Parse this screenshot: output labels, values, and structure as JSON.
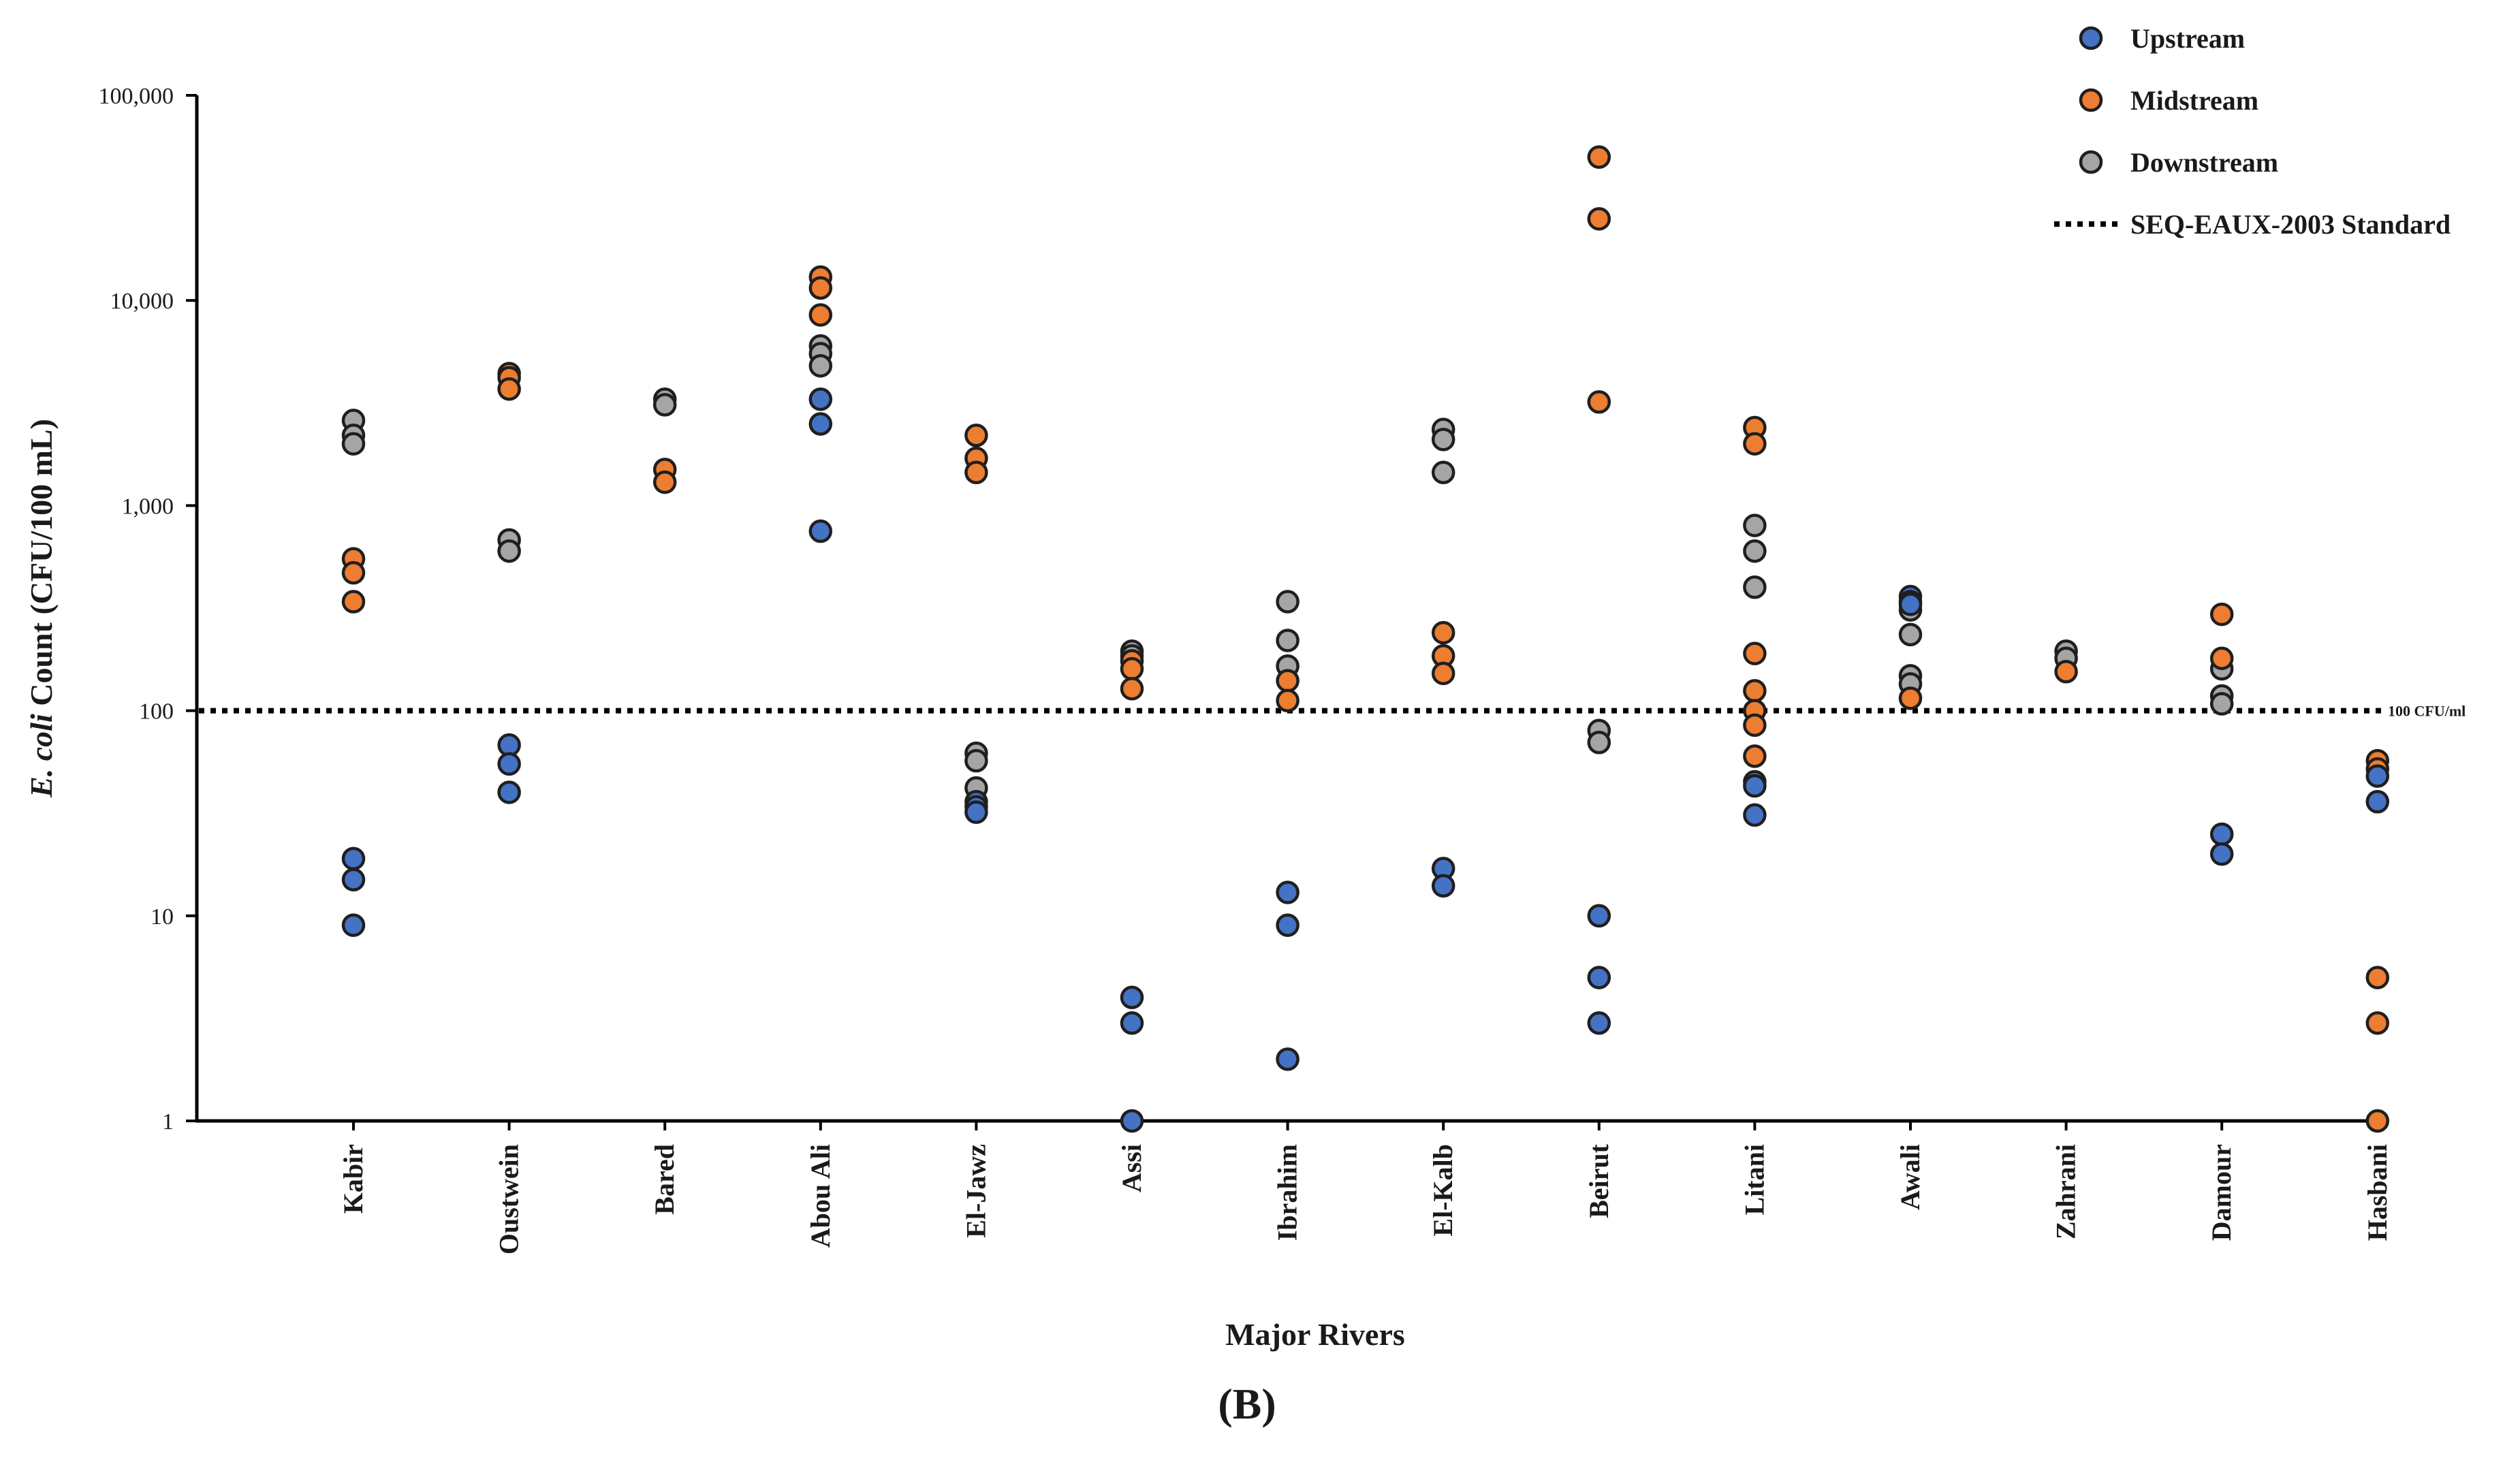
{
  "chart_data": {
    "type": "scatter",
    "panel_label": "(B)",
    "xlabel": "Major Rivers",
    "ylabel_italic": "E. coli",
    "ylabel_rest": " Count (CFU/100 mL)",
    "yscale": "log",
    "ylim": [
      1,
      100000
    ],
    "yticks": [
      1,
      10,
      100,
      1000,
      10000,
      100000
    ],
    "ytick_labels": [
      "1",
      "10",
      "100",
      "1,000",
      "10,000",
      "100,000"
    ],
    "categories": [
      "Kabir",
      "Oustwein",
      "Bared",
      "Abou Ali",
      "El-Jawz",
      "Assi",
      "Ibrahim",
      "El-Kalb",
      "Beirut",
      "Litani",
      "Awali",
      "Zahrani",
      "Damour",
      "Hasbani"
    ],
    "series": [
      {
        "name": "Upstream",
        "color": "#4472c4",
        "points": [
          [
            "Kabir",
            19
          ],
          [
            "Kabir",
            15
          ],
          [
            "Kabir",
            9
          ],
          [
            "Oustwein",
            68
          ],
          [
            "Oustwein",
            55
          ],
          [
            "Oustwein",
            40
          ],
          [
            "Abou Ali",
            3300
          ],
          [
            "Abou Ali",
            2500
          ],
          [
            "Abou Ali",
            750
          ],
          [
            "El-Jawz",
            36
          ],
          [
            "El-Jawz",
            34
          ],
          [
            "El-Jawz",
            32
          ],
          [
            "Assi",
            4
          ],
          [
            "Assi",
            3
          ],
          [
            "Assi",
            1
          ],
          [
            "Ibrahim",
            13
          ],
          [
            "Ibrahim",
            9
          ],
          [
            "Ibrahim",
            2
          ],
          [
            "El-Kalb",
            17
          ],
          [
            "El-Kalb",
            14
          ],
          [
            "Beirut",
            10
          ],
          [
            "Beirut",
            5
          ],
          [
            "Beirut",
            3
          ],
          [
            "Litani",
            45
          ],
          [
            "Litani",
            43
          ],
          [
            "Litani",
            31
          ],
          [
            "Awali",
            360
          ],
          [
            "Awali",
            340
          ],
          [
            "Awali",
            330
          ],
          [
            "Damour",
            25
          ],
          [
            "Damour",
            20
          ],
          [
            "Hasbani",
            48
          ],
          [
            "Hasbani",
            36
          ]
        ]
      },
      {
        "name": "Midstream",
        "color": "#ed7d31",
        "points": [
          [
            "Kabir",
            550
          ],
          [
            "Kabir",
            470
          ],
          [
            "Kabir",
            340
          ],
          [
            "Oustwein",
            4400
          ],
          [
            "Oustwein",
            4200
          ],
          [
            "Oustwein",
            3700
          ],
          [
            "Bared",
            1500
          ],
          [
            "Bared",
            1300
          ],
          [
            "Abou Ali",
            13000
          ],
          [
            "Abou Ali",
            11500
          ],
          [
            "Abou Ali",
            8500
          ],
          [
            "El-Jawz",
            2200
          ],
          [
            "El-Jawz",
            1700
          ],
          [
            "El-Jawz",
            1450
          ],
          [
            "Assi",
            175
          ],
          [
            "Assi",
            160
          ],
          [
            "Assi",
            128
          ],
          [
            "Ibrahim",
            140
          ],
          [
            "Ibrahim",
            112
          ],
          [
            "El-Kalb",
            240
          ],
          [
            "El-Kalb",
            185
          ],
          [
            "El-Kalb",
            152
          ],
          [
            "Beirut",
            50000
          ],
          [
            "Beirut",
            25000
          ],
          [
            "Beirut",
            3200
          ],
          [
            "Litani",
            2400
          ],
          [
            "Litani",
            2000
          ],
          [
            "Litani",
            190
          ],
          [
            "Litani",
            125
          ],
          [
            "Litani",
            100
          ],
          [
            "Litani",
            85
          ],
          [
            "Litani",
            60
          ],
          [
            "Awali",
            115
          ],
          [
            "Zahrani",
            155
          ],
          [
            "Damour",
            295
          ],
          [
            "Damour",
            180
          ],
          [
            "Hasbani",
            57
          ],
          [
            "Hasbani",
            52
          ],
          [
            "Hasbani",
            5
          ],
          [
            "Hasbani",
            3
          ],
          [
            "Hasbani",
            1
          ]
        ]
      },
      {
        "name": "Downstream",
        "color": "#a5a5a5",
        "points": [
          [
            "Kabir",
            2600
          ],
          [
            "Kabir",
            2200
          ],
          [
            "Kabir",
            2000
          ],
          [
            "Oustwein",
            680
          ],
          [
            "Oustwein",
            600
          ],
          [
            "Bared",
            3300
          ],
          [
            "Bared",
            3100
          ],
          [
            "Abou Ali",
            6000
          ],
          [
            "Abou Ali",
            5500
          ],
          [
            "Abou Ali",
            4800
          ],
          [
            "El-Jawz",
            62
          ],
          [
            "El-Jawz",
            57
          ],
          [
            "El-Jawz",
            42
          ],
          [
            "Assi",
            195
          ],
          [
            "Assi",
            185
          ],
          [
            "Ibrahim",
            340
          ],
          [
            "Ibrahim",
            220
          ],
          [
            "Ibrahim",
            165
          ],
          [
            "El-Kalb",
            2350
          ],
          [
            "El-Kalb",
            2100
          ],
          [
            "El-Kalb",
            1450
          ],
          [
            "Beirut",
            80
          ],
          [
            "Beirut",
            70
          ],
          [
            "Litani",
            800
          ],
          [
            "Litani",
            600
          ],
          [
            "Litani",
            400
          ],
          [
            "Awali",
            310
          ],
          [
            "Awali",
            235
          ],
          [
            "Awali",
            148
          ],
          [
            "Awali",
            135
          ],
          [
            "Zahrani",
            195
          ],
          [
            "Zahrani",
            180
          ],
          [
            "Damour",
            160
          ],
          [
            "Damour",
            118
          ],
          [
            "Damour",
            108
          ]
        ]
      }
    ],
    "reference_line": {
      "name": "SEQ-EAUX-2003 Standard",
      "value": 100,
      "label": "100 CFU/ml",
      "style": "dotted"
    },
    "legend": {
      "position": "top-right",
      "entries": [
        "Upstream",
        "Midstream",
        "Downstream",
        "SEQ-EAUX-2003 Standard"
      ]
    }
  }
}
